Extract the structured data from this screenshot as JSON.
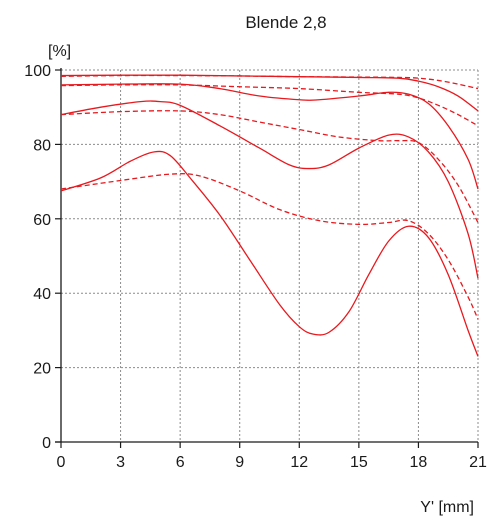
{
  "chart_data": {
    "type": "line",
    "title": "Blende 2,8",
    "ylabel": "[%]",
    "xlabel": "Y' [mm]",
    "xlim": [
      0,
      21
    ],
    "ylim": [
      0,
      100
    ],
    "xticks": [
      0,
      3,
      6,
      9,
      12,
      15,
      18,
      21
    ],
    "yticks": [
      0,
      20,
      40,
      60,
      80,
      100
    ],
    "grid": true,
    "line_color": "#e8191e",
    "series": [
      {
        "style": "solid",
        "points": [
          [
            0,
            98.5
          ],
          [
            3,
            98.6
          ],
          [
            6,
            98.6
          ],
          [
            9,
            98.4
          ],
          [
            12,
            98.2
          ],
          [
            15,
            98.0
          ],
          [
            17,
            97.8
          ],
          [
            18,
            97.0
          ],
          [
            19,
            95.5
          ],
          [
            20,
            93
          ],
          [
            21,
            89
          ]
        ]
      },
      {
        "style": "dashed",
        "points": [
          [
            0,
            98.3
          ],
          [
            3,
            98.5
          ],
          [
            6,
            98.5
          ],
          [
            9,
            98.4
          ],
          [
            12,
            98.2
          ],
          [
            15,
            98.1
          ],
          [
            17,
            98.0
          ],
          [
            18,
            97.8
          ],
          [
            19,
            97.2
          ],
          [
            20,
            96.2
          ],
          [
            21,
            95
          ]
        ]
      },
      {
        "style": "solid",
        "points": [
          [
            0,
            96
          ],
          [
            3,
            96.2
          ],
          [
            6,
            96.2
          ],
          [
            8,
            95
          ],
          [
            10,
            93
          ],
          [
            12,
            92
          ],
          [
            13,
            92
          ],
          [
            15,
            93
          ],
          [
            16.5,
            94
          ],
          [
            17.5,
            93.5
          ],
          [
            18.5,
            91
          ],
          [
            19.5,
            85
          ],
          [
            20.5,
            76
          ],
          [
            21,
            68
          ]
        ]
      },
      {
        "style": "dashed",
        "points": [
          [
            0,
            95.8
          ],
          [
            3,
            96
          ],
          [
            6,
            96
          ],
          [
            9,
            95.5
          ],
          [
            12,
            95
          ],
          [
            15,
            94
          ],
          [
            17,
            93.5
          ],
          [
            18,
            92.5
          ],
          [
            19,
            90.5
          ],
          [
            20,
            88
          ],
          [
            21,
            85
          ]
        ]
      },
      {
        "style": "solid",
        "points": [
          [
            0,
            88
          ],
          [
            2,
            90
          ],
          [
            4,
            91.5
          ],
          [
            5,
            91.5
          ],
          [
            6,
            90.5
          ],
          [
            8,
            85
          ],
          [
            10,
            79
          ],
          [
            11.5,
            74.5
          ],
          [
            12.5,
            73.5
          ],
          [
            13.5,
            74.5
          ],
          [
            15,
            79
          ],
          [
            16.5,
            82.5
          ],
          [
            17.5,
            82
          ],
          [
            18.5,
            78
          ],
          [
            19.5,
            70
          ],
          [
            20.5,
            56
          ],
          [
            21,
            44
          ]
        ]
      },
      {
        "style": "dashed",
        "points": [
          [
            0,
            88
          ],
          [
            3,
            88.8
          ],
          [
            6,
            89
          ],
          [
            8,
            88
          ],
          [
            10,
            86
          ],
          [
            12,
            84
          ],
          [
            14,
            82
          ],
          [
            16,
            81
          ],
          [
            17,
            81
          ],
          [
            18,
            80.5
          ],
          [
            19,
            76
          ],
          [
            20,
            69
          ],
          [
            21,
            59
          ]
        ]
      },
      {
        "style": "solid",
        "points": [
          [
            0,
            67.5
          ],
          [
            2,
            71
          ],
          [
            3.5,
            75.5
          ],
          [
            4.7,
            78
          ],
          [
            5.5,
            77
          ],
          [
            6.5,
            71
          ],
          [
            8,
            61
          ],
          [
            9.5,
            49
          ],
          [
            11,
            37
          ],
          [
            12,
            31
          ],
          [
            12.7,
            29
          ],
          [
            13.5,
            29.5
          ],
          [
            14.5,
            35
          ],
          [
            15.5,
            45
          ],
          [
            16.5,
            54
          ],
          [
            17.5,
            58
          ],
          [
            18.5,
            55
          ],
          [
            19.5,
            45
          ],
          [
            20.5,
            30
          ],
          [
            21,
            23
          ]
        ]
      },
      {
        "style": "dashed",
        "points": [
          [
            0,
            68
          ],
          [
            3,
            70.3
          ],
          [
            5.5,
            72
          ],
          [
            7,
            71.5
          ],
          [
            9,
            67.5
          ],
          [
            11,
            62.5
          ],
          [
            13,
            59.5
          ],
          [
            15,
            58.5
          ],
          [
            16.5,
            59
          ],
          [
            17.5,
            59.5
          ],
          [
            18.5,
            56
          ],
          [
            19.5,
            49
          ],
          [
            20.5,
            39
          ],
          [
            21,
            33
          ]
        ]
      }
    ]
  }
}
